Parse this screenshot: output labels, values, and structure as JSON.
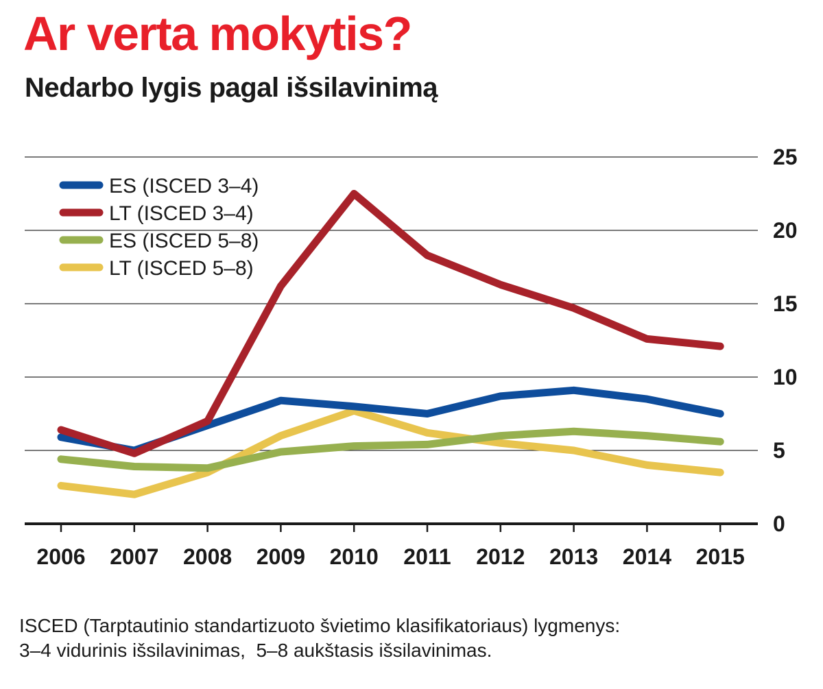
{
  "title": "Ar verta mokytis?",
  "subtitle": "Nedarbo lygis pagal išsilavinimą",
  "footnote": {
    "line1": "ISCED (Tarptautinio standartizuoto švietimo klasifikatoriaus) lygmenys:",
    "line2": "3–4 vidurinis išsilavinimas,  5–8 aukštasis išsilavinimas."
  },
  "chart_data": {
    "type": "line",
    "title": "Nedarbo lygis pagal išsilavinimą",
    "xlabel": "",
    "ylabel": "",
    "categories": [
      "2006",
      "2007",
      "2008",
      "2009",
      "2010",
      "2011",
      "2012",
      "2013",
      "2014",
      "2015"
    ],
    "ylim": [
      0,
      25
    ],
    "yticks": [
      "0",
      "5",
      "10",
      "15",
      "20",
      "25"
    ],
    "grid": true,
    "legend_position": "top-left",
    "series": [
      {
        "name": "ES (ISCED 3–4)",
        "color": "#0e4d9c",
        "values": [
          5.9,
          5.0,
          6.7,
          8.4,
          8.0,
          7.5,
          8.7,
          9.1,
          8.5,
          7.5
        ]
      },
      {
        "name": "LT (ISCED 3–4)",
        "color": "#a8222a",
        "values": [
          6.4,
          4.8,
          7.0,
          16.2,
          22.5,
          18.3,
          16.3,
          14.7,
          12.6,
          12.1
        ]
      },
      {
        "name": "ES (ISCED 5–8)",
        "color": "#97b04f",
        "values": [
          4.4,
          3.9,
          3.8,
          4.9,
          5.3,
          5.4,
          6.0,
          6.3,
          6.0,
          5.6
        ]
      },
      {
        "name": "LT (ISCED 5–8)",
        "color": "#e8c44e",
        "values": [
          2.6,
          2.0,
          3.5,
          6.0,
          7.7,
          6.2,
          5.5,
          5.0,
          4.0,
          3.5
        ]
      }
    ]
  }
}
